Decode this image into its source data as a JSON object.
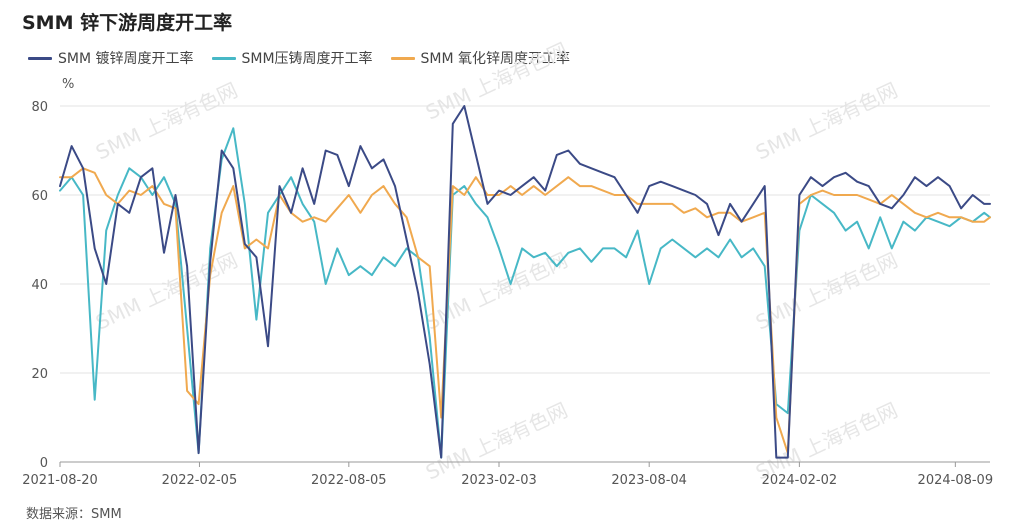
{
  "title": "SMM 锌下游周度开工率",
  "source": "数据来源：SMM",
  "watermark": "SMM 上海有色网",
  "legend_position": "top-left",
  "chart_data": {
    "type": "line",
    "title": "SMM 锌下游周度开工率",
    "ylabel": "%",
    "xlabel": "",
    "ylim": [
      0,
      80
    ],
    "yticks": [
      0,
      20,
      40,
      60,
      80
    ],
    "grid": true,
    "xticks": [
      "2021-08-20",
      "2022-02-05",
      "2022-08-05",
      "2023-02-03",
      "2023-08-04",
      "2024-02-02",
      "2024-08-09"
    ],
    "x_start": "2021-08-20",
    "x_end": "2024-09-20",
    "series": [
      {
        "name": "SMM 镀锌周度开工率",
        "color": "#3b4a86",
        "x": [
          "2021-08-20",
          "2021-09-03",
          "2021-09-17",
          "2021-10-01",
          "2021-10-15",
          "2021-10-29",
          "2021-11-12",
          "2021-11-26",
          "2021-12-10",
          "2021-12-24",
          "2022-01-07",
          "2022-01-21",
          "2022-02-04",
          "2022-02-18",
          "2022-03-04",
          "2022-03-18",
          "2022-04-01",
          "2022-04-15",
          "2022-04-29",
          "2022-05-13",
          "2022-05-27",
          "2022-06-10",
          "2022-06-24",
          "2022-07-08",
          "2022-07-22",
          "2022-08-05",
          "2022-08-19",
          "2022-09-02",
          "2022-09-16",
          "2022-09-30",
          "2022-10-14",
          "2022-10-28",
          "2022-11-11",
          "2022-11-25",
          "2022-12-09",
          "2022-12-23",
          "2023-01-06",
          "2023-01-20",
          "2023-02-03",
          "2023-02-17",
          "2023-03-03",
          "2023-03-17",
          "2023-03-31",
          "2023-04-14",
          "2023-04-28",
          "2023-05-12",
          "2023-05-26",
          "2023-06-09",
          "2023-06-23",
          "2023-07-07",
          "2023-07-21",
          "2023-08-04",
          "2023-08-18",
          "2023-09-01",
          "2023-09-15",
          "2023-09-29",
          "2023-10-13",
          "2023-10-27",
          "2023-11-10",
          "2023-11-24",
          "2023-12-08",
          "2023-12-22",
          "2024-01-05",
          "2024-01-19",
          "2024-02-02",
          "2024-02-16",
          "2024-03-01",
          "2024-03-15",
          "2024-03-29",
          "2024-04-12",
          "2024-04-26",
          "2024-05-10",
          "2024-05-24",
          "2024-06-07",
          "2024-06-21",
          "2024-07-05",
          "2024-07-19",
          "2024-08-02",
          "2024-08-16",
          "2024-08-30",
          "2024-09-13",
          "2024-09-20"
        ],
        "values": [
          62,
          71,
          66,
          48,
          40,
          58,
          56,
          64,
          66,
          47,
          60,
          44,
          2,
          45,
          70,
          66,
          49,
          46,
          26,
          62,
          56,
          66,
          58,
          70,
          69,
          62,
          71,
          66,
          68,
          62,
          50,
          38,
          22,
          1,
          76,
          80,
          69,
          58,
          61,
          60,
          62,
          64,
          61,
          69,
          70,
          67,
          66,
          65,
          64,
          60,
          56,
          62,
          63,
          62,
          61,
          60,
          58,
          51,
          58,
          54,
          58,
          62,
          1,
          1,
          60,
          64,
          62,
          64,
          65,
          63,
          62,
          58,
          57,
          60,
          64,
          62,
          64,
          62,
          57,
          60,
          58,
          58
        ]
      },
      {
        "name": "SMM压铸周度开工率",
        "color": "#47b8c6",
        "x": [
          "2021-08-20",
          "2021-09-03",
          "2021-09-17",
          "2021-10-01",
          "2021-10-15",
          "2021-10-29",
          "2021-11-12",
          "2021-11-26",
          "2021-12-10",
          "2021-12-24",
          "2022-01-07",
          "2022-01-21",
          "2022-02-04",
          "2022-02-18",
          "2022-03-04",
          "2022-03-18",
          "2022-04-01",
          "2022-04-15",
          "2022-04-29",
          "2022-05-13",
          "2022-05-27",
          "2022-06-10",
          "2022-06-24",
          "2022-07-08",
          "2022-07-22",
          "2022-08-05",
          "2022-08-19",
          "2022-09-02",
          "2022-09-16",
          "2022-09-30",
          "2022-10-14",
          "2022-10-28",
          "2022-11-11",
          "2022-11-25",
          "2022-12-09",
          "2022-12-23",
          "2023-01-06",
          "2023-01-20",
          "2023-02-03",
          "2023-02-17",
          "2023-03-03",
          "2023-03-17",
          "2023-03-31",
          "2023-04-14",
          "2023-04-28",
          "2023-05-12",
          "2023-05-26",
          "2023-06-09",
          "2023-06-23",
          "2023-07-07",
          "2023-07-21",
          "2023-08-04",
          "2023-08-18",
          "2023-09-01",
          "2023-09-15",
          "2023-09-29",
          "2023-10-13",
          "2023-10-27",
          "2023-11-10",
          "2023-11-24",
          "2023-12-08",
          "2023-12-22",
          "2024-01-05",
          "2024-01-19",
          "2024-02-02",
          "2024-02-16",
          "2024-03-01",
          "2024-03-15",
          "2024-03-29",
          "2024-04-12",
          "2024-04-26",
          "2024-05-10",
          "2024-05-24",
          "2024-06-07",
          "2024-06-21",
          "2024-07-05",
          "2024-07-19",
          "2024-08-02",
          "2024-08-16",
          "2024-08-30",
          "2024-09-13",
          "2024-09-20"
        ],
        "values": [
          61,
          64,
          60,
          14,
          52,
          60,
          66,
          64,
          60,
          64,
          58,
          30,
          2,
          48,
          68,
          75,
          58,
          32,
          56,
          60,
          64,
          58,
          54,
          40,
          48,
          42,
          44,
          42,
          46,
          44,
          48,
          46,
          28,
          1,
          60,
          62,
          58,
          55,
          48,
          40,
          48,
          46,
          47,
          44,
          47,
          48,
          45,
          48,
          48,
          46,
          52,
          40,
          48,
          50,
          48,
          46,
          48,
          46,
          50,
          46,
          48,
          44,
          13,
          11,
          52,
          60,
          58,
          56,
          52,
          54,
          48,
          55,
          48,
          54,
          52,
          55,
          54,
          53,
          55,
          54,
          56,
          55
        ]
      },
      {
        "name": "SMM 氧化锌周度开工率",
        "color": "#f0a94f",
        "x": [
          "2021-08-20",
          "2021-09-03",
          "2021-09-17",
          "2021-10-01",
          "2021-10-15",
          "2021-10-29",
          "2021-11-12",
          "2021-11-26",
          "2021-12-10",
          "2021-12-24",
          "2022-01-07",
          "2022-01-21",
          "2022-02-04",
          "2022-02-18",
          "2022-03-04",
          "2022-03-18",
          "2022-04-01",
          "2022-04-15",
          "2022-04-29",
          "2022-05-13",
          "2022-05-27",
          "2022-06-10",
          "2022-06-24",
          "2022-07-08",
          "2022-07-22",
          "2022-08-05",
          "2022-08-19",
          "2022-09-02",
          "2022-09-16",
          "2022-09-30",
          "2022-10-14",
          "2022-10-28",
          "2022-11-11",
          "2022-11-25",
          "2022-12-09",
          "2022-12-23",
          "2023-01-06",
          "2023-01-20",
          "2023-02-03",
          "2023-02-17",
          "2023-03-03",
          "2023-03-17",
          "2023-03-31",
          "2023-04-14",
          "2023-04-28",
          "2023-05-12",
          "2023-05-26",
          "2023-06-09",
          "2023-06-23",
          "2023-07-07",
          "2023-07-21",
          "2023-08-04",
          "2023-08-18",
          "2023-09-01",
          "2023-09-15",
          "2023-09-29",
          "2023-10-13",
          "2023-10-27",
          "2023-11-10",
          "2023-11-24",
          "2023-12-08",
          "2023-12-22",
          "2024-01-05",
          "2024-01-19",
          "2024-02-02",
          "2024-02-16",
          "2024-03-01",
          "2024-03-15",
          "2024-03-29",
          "2024-04-12",
          "2024-04-26",
          "2024-05-10",
          "2024-05-24",
          "2024-06-07",
          "2024-06-21",
          "2024-07-05",
          "2024-07-19",
          "2024-08-02",
          "2024-08-16",
          "2024-08-30",
          "2024-09-13",
          "2024-09-20"
        ],
        "values": [
          64,
          64,
          66,
          65,
          60,
          58,
          61,
          60,
          62,
          58,
          57,
          16,
          13,
          42,
          56,
          62,
          48,
          50,
          48,
          60,
          56,
          54,
          55,
          54,
          57,
          60,
          56,
          60,
          62,
          58,
          55,
          46,
          44,
          10,
          62,
          60,
          64,
          60,
          60,
          62,
          60,
          62,
          60,
          62,
          64,
          62,
          62,
          61,
          60,
          60,
          58,
          58,
          58,
          58,
          56,
          57,
          55,
          56,
          56,
          54,
          55,
          56,
          10,
          2,
          58,
          60,
          61,
          60,
          60,
          60,
          59,
          58,
          60,
          58,
          56,
          55,
          56,
          55,
          55,
          54,
          54,
          55
        ]
      }
    ]
  }
}
